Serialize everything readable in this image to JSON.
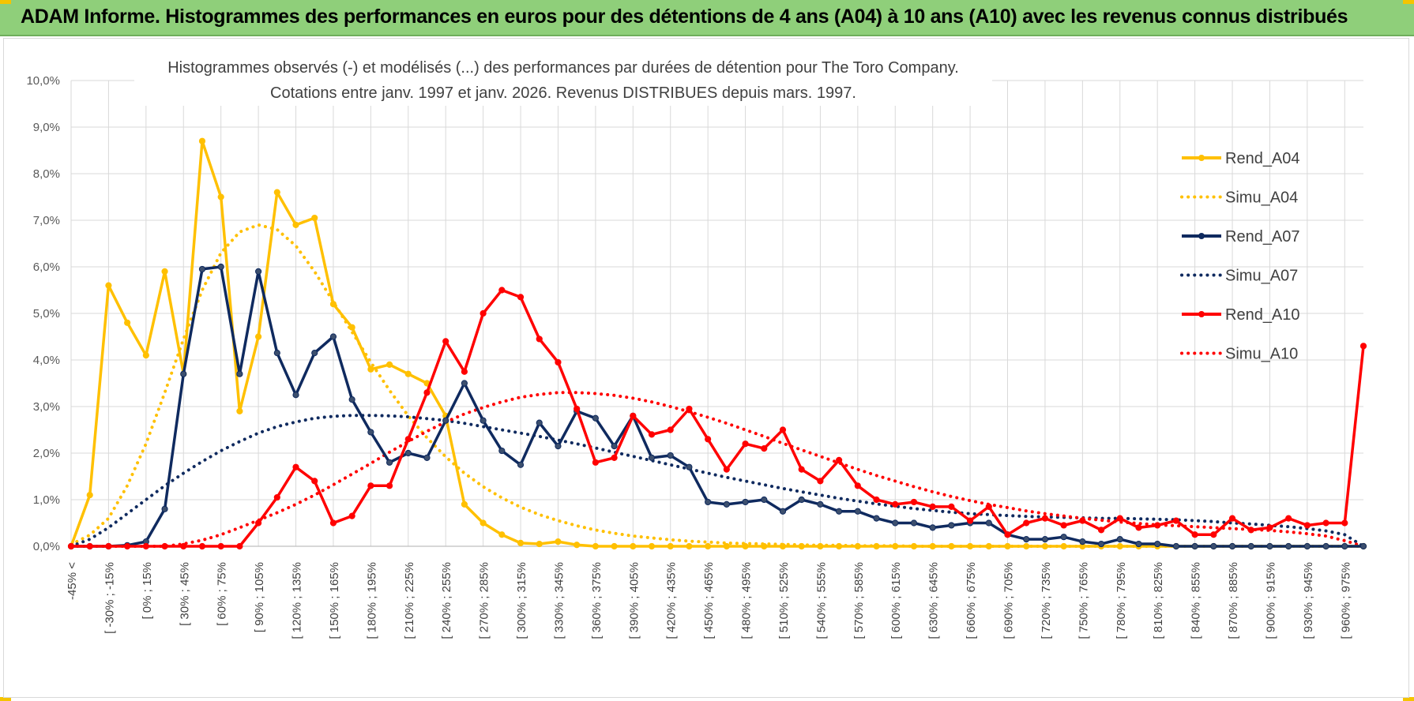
{
  "header": {
    "title": "ADAM Informe. Histogrammes des performances en euros pour des détentions de 4 ans (A04) à 10 ans (A10) avec les revenus connus distribués"
  },
  "chart_data": {
    "type": "line",
    "title_line1": "Histogrammes observés (-) et modélisés (...) des performances par durées de détention pour The Toro Company.",
    "title_line2": "Cotations entre janv. 1997 et janv. 2026. Revenus DISTRIBUES depuis mars. 1997.",
    "ylim": [
      0,
      10
    ],
    "yticks": [
      "0,0%",
      "1,0%",
      "2,0%",
      "3,0%",
      "4,0%",
      "5,0%",
      "6,0%",
      "7,0%",
      "8,0%",
      "9,0%",
      "10,0%"
    ],
    "xlabels": [
      "-45% <",
      "[ -30% ; -15%",
      "[ 0% ; 15%",
      "[ 30% ; 45%",
      "[ 60% ; 75%",
      "[ 90% ; 105%",
      "[ 120% ; 135%",
      "[ 150% ; 165%",
      "[ 180% ; 195%",
      "[ 210% ; 225%",
      "[ 240% ; 255%",
      "[ 270% ; 285%",
      "[ 300% ; 315%",
      "[ 330% ; 345%",
      "[ 360% ; 375%",
      "[ 390% ; 405%",
      "[ 420% ; 435%",
      "[ 450% ; 465%",
      "[ 480% ; 495%",
      "[ 510% ; 525%",
      "[ 540% ; 555%",
      "[ 570% ; 585%",
      "[ 600% ; 615%",
      "[ 630% ; 645%",
      "[ 660% ; 675%",
      "[ 690% ; 705%",
      "[ 720% ; 735%",
      "[ 750% ; 765%",
      "[ 780% ; 795%",
      "[ 810% ; 825%",
      "[ 840% ; 855%",
      "[ 870% ; 885%",
      "[ 900% ; 915%",
      "[ 930% ; 945%",
      "[ 960% ; 975%"
    ],
    "n_points": 70,
    "series": [
      {
        "name": "Rend_A04",
        "style": "solid",
        "color": "#ffc000",
        "values": [
          0,
          1.1,
          5.6,
          4.8,
          4.1,
          5.9,
          3.7,
          8.7,
          7.5,
          2.9,
          4.5,
          7.6,
          6.9,
          7.05,
          5.2,
          4.7,
          3.8,
          3.9,
          3.7,
          3.5,
          2.8,
          0.9,
          0.5,
          0.25,
          0.07,
          0.05,
          0.1,
          0.03,
          0,
          0,
          0,
          0,
          0,
          0,
          0,
          0,
          0,
          0,
          0,
          0,
          0,
          0,
          0,
          0,
          0,
          0,
          0,
          0,
          0,
          0,
          0,
          0,
          0,
          0,
          0,
          0,
          0,
          0,
          0,
          0,
          0,
          0,
          0,
          0,
          0,
          0,
          0,
          0,
          0,
          0
        ]
      },
      {
        "name": "Simu_A04",
        "style": "dotted",
        "color": "#ffc000",
        "values": [
          0.04,
          0.24,
          0.6,
          1.3,
          2.2,
          3.3,
          4.45,
          5.5,
          6.3,
          6.75,
          6.9,
          6.8,
          6.45,
          5.9,
          5.25,
          4.6,
          3.95,
          3.35,
          2.8,
          2.33,
          1.92,
          1.57,
          1.28,
          1.04,
          0.84,
          0.68,
          0.55,
          0.44,
          0.35,
          0.28,
          0.22,
          0.18,
          0.14,
          0.11,
          0.09,
          0.07,
          0.06,
          0.05,
          0.04,
          0.03,
          0.02,
          0.02,
          0.01,
          0.01,
          0.01,
          0,
          0,
          0,
          0,
          0,
          0,
          0,
          0,
          0,
          0,
          0,
          0,
          0,
          0,
          0,
          0,
          0,
          0,
          0,
          0,
          0,
          0,
          0,
          0,
          0
        ]
      },
      {
        "name": "Rend_A07",
        "style": "solid",
        "color": "#0f2a5f",
        "values": [
          0,
          0,
          0,
          0.02,
          0.1,
          0.8,
          3.7,
          5.95,
          6.0,
          3.7,
          5.9,
          4.15,
          3.25,
          4.15,
          4.5,
          3.15,
          2.45,
          1.8,
          2.0,
          1.9,
          2.7,
          3.5,
          2.7,
          2.05,
          1.75,
          2.65,
          2.15,
          2.9,
          2.75,
          2.15,
          2.8,
          1.9,
          1.95,
          1.7,
          0.95,
          0.9,
          0.95,
          1.0,
          0.75,
          1.0,
          0.9,
          0.75,
          0.75,
          0.6,
          0.5,
          0.5,
          0.4,
          0.45,
          0.5,
          0.5,
          0.25,
          0.15,
          0.15,
          0.2,
          0.1,
          0.05,
          0.15,
          0.05,
          0.05,
          0,
          0,
          0,
          0,
          0,
          0,
          0,
          0,
          0,
          0,
          0
        ]
      },
      {
        "name": "Simu_A07",
        "style": "dotted",
        "color": "#0f2a5f",
        "values": [
          0,
          0.15,
          0.4,
          0.7,
          1.0,
          1.3,
          1.57,
          1.82,
          2.05,
          2.25,
          2.43,
          2.57,
          2.67,
          2.75,
          2.79,
          2.81,
          2.81,
          2.8,
          2.78,
          2.74,
          2.7,
          2.64,
          2.57,
          2.5,
          2.43,
          2.36,
          2.28,
          2.2,
          2.11,
          2.02,
          1.93,
          1.84,
          1.75,
          1.66,
          1.57,
          1.48,
          1.4,
          1.32,
          1.24,
          1.17,
          1.1,
          1.03,
          0.97,
          0.91,
          0.86,
          0.81,
          0.77,
          0.73,
          0.7,
          0.68,
          0.66,
          0.64,
          0.63,
          0.62,
          0.61,
          0.6,
          0.6,
          0.59,
          0.58,
          0.57,
          0.55,
          0.53,
          0.5,
          0.48,
          0.45,
          0.42,
          0.38,
          0.33,
          0.25,
          0
        ]
      },
      {
        "name": "Rend_A10",
        "style": "solid",
        "color": "#ff0000",
        "values": [
          0,
          0,
          0,
          0,
          0,
          0,
          0,
          0,
          0,
          0,
          0.5,
          1.05,
          1.7,
          1.4,
          0.5,
          0.65,
          1.3,
          1.3,
          2.3,
          3.3,
          4.4,
          3.75,
          5.0,
          5.5,
          5.35,
          4.45,
          3.95,
          2.95,
          1.8,
          1.9,
          2.8,
          2.4,
          2.5,
          2.95,
          2.3,
          1.65,
          2.2,
          2.1,
          2.5,
          1.65,
          1.4,
          1.85,
          1.3,
          1.0,
          0.9,
          0.95,
          0.85,
          0.85,
          0.55,
          0.85,
          0.25,
          0.5,
          0.6,
          0.45,
          0.55,
          0.35,
          0.6,
          0.4,
          0.45,
          0.55,
          0.25,
          0.25,
          0.6,
          0.35,
          0.4,
          0.6,
          0.45,
          0.5,
          0.5,
          4.3
        ]
      },
      {
        "name": "Simu_A10",
        "style": "dotted",
        "color": "#ff0000",
        "values": [
          0,
          0,
          0,
          0,
          0,
          0,
          0.05,
          0.13,
          0.25,
          0.4,
          0.56,
          0.72,
          0.9,
          1.1,
          1.32,
          1.55,
          1.78,
          2.02,
          2.25,
          2.47,
          2.67,
          2.84,
          2.98,
          3.1,
          3.2,
          3.26,
          3.3,
          3.3,
          3.28,
          3.24,
          3.18,
          3.1,
          3.0,
          2.89,
          2.77,
          2.64,
          2.5,
          2.36,
          2.21,
          2.07,
          1.93,
          1.79,
          1.65,
          1.52,
          1.4,
          1.28,
          1.17,
          1.07,
          0.98,
          0.9,
          0.83,
          0.76,
          0.7,
          0.65,
          0.6,
          0.56,
          0.52,
          0.49,
          0.46,
          0.44,
          0.42,
          0.4,
          0.38,
          0.36,
          0.34,
          0.31,
          0.27,
          0.22,
          0.12,
          0
        ]
      }
    ]
  }
}
